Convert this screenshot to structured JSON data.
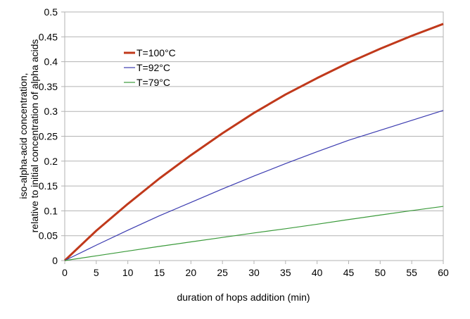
{
  "chart_data": {
    "type": "line",
    "title": "",
    "xlabel": "duration of hops addition (min)",
    "ylabel_lines": [
      "iso-alpha-acid concentration,",
      "relative to initial concentration of alpha acids"
    ],
    "xlim": [
      0,
      60
    ],
    "ylim": [
      0,
      0.5
    ],
    "x_ticks": [
      "0",
      "5",
      "10",
      "15",
      "20",
      "25",
      "30",
      "35",
      "40",
      "45",
      "50",
      "55",
      "60"
    ],
    "y_ticks": [
      "0",
      "0.05",
      "0.1",
      "0.15",
      "0.2",
      "0.25",
      "0.3",
      "0.35",
      "0.4",
      "0.45",
      "0.5"
    ],
    "grid": "horizontal",
    "legend_position": "top-left",
    "x": [
      0,
      5,
      10,
      15,
      20,
      25,
      30,
      35,
      40,
      45,
      50,
      55,
      60
    ],
    "series": [
      {
        "name": "T=100°C",
        "color": "#c0391b",
        "width": 3,
        "values": [
          0,
          0.06,
          0.114,
          0.165,
          0.212,
          0.256,
          0.297,
          0.334,
          0.367,
          0.398,
          0.426,
          0.452,
          0.476
        ]
      },
      {
        "name": "T=92°C",
        "color": "#3b3bb0",
        "width": 1.2,
        "values": [
          0,
          0.031,
          0.061,
          0.09,
          0.117,
          0.144,
          0.17,
          0.195,
          0.219,
          0.242,
          0.262,
          0.282,
          0.302
        ]
      },
      {
        "name": "T=79°C",
        "color": "#3a9a3a",
        "width": 1.2,
        "values": [
          0,
          0.0095,
          0.019,
          0.0285,
          0.0375,
          0.0465,
          0.0555,
          0.064,
          0.073,
          0.0825,
          0.0915,
          0.1005,
          0.109
        ]
      }
    ]
  }
}
